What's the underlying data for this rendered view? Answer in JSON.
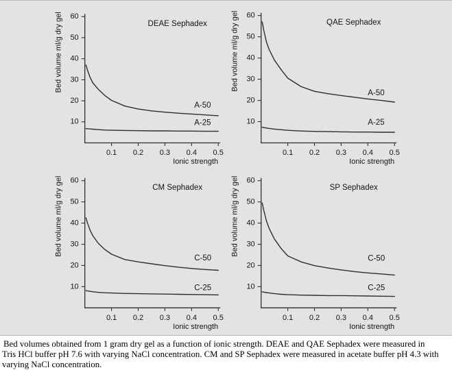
{
  "figure": {
    "background_color": "#e3e3e3",
    "line_color": "#2e2e2e",
    "text_color": "#141414"
  },
  "caption": {
    "lines": [
      "Bed volumes obtained from 1 gram dry gel as a function of ionic strength. DEAE and QAE Sephadex were measured in",
      "Tris HCl buffer pH 7.6 with varying NaCl concentration. CM and SP Sephadex were measured in acetate buffer pH 4.3 with",
      "varying NaCl concentration."
    ]
  },
  "chart_data": [
    {
      "type": "line",
      "title": "DEAE Sephadex",
      "xlabel": "Ionic strength",
      "ylabel": "Bed volume ml/g dry gel",
      "xlim": [
        0,
        0.5
      ],
      "ylim": [
        0,
        60
      ],
      "xticks": [
        0.1,
        0.2,
        0.3,
        0.4,
        0.5
      ],
      "yticks": [
        10,
        20,
        30,
        40,
        50,
        60
      ],
      "grid": false,
      "x": [
        0.004,
        0.01,
        0.02,
        0.03,
        0.05,
        0.075,
        0.1,
        0.15,
        0.2,
        0.25,
        0.3,
        0.35,
        0.4,
        0.45,
        0.5
      ],
      "series": [
        {
          "name": "A-50",
          "label_x": 0.41,
          "label_y": 17.8,
          "y": [
            37,
            34.5,
            31,
            28.5,
            25.5,
            22.5,
            20.2,
            17.5,
            16.1,
            15.2,
            14.6,
            14.1,
            13.7,
            13.3,
            12.9
          ]
        },
        {
          "name": "A-25",
          "label_x": 0.41,
          "label_y": 9.5,
          "y": [
            6.8,
            6.7,
            6.6,
            6.5,
            6.3,
            6.1,
            6.0,
            5.9,
            5.8,
            5.7,
            5.7,
            5.6,
            5.6,
            5.5,
            5.5
          ]
        }
      ]
    },
    {
      "type": "line",
      "title": "QAE Sephadex",
      "xlabel": "Ionic strength",
      "ylabel": "Bed volume ml/g dry gel",
      "xlim": [
        0,
        0.5
      ],
      "ylim": [
        0,
        60
      ],
      "xticks": [
        0.1,
        0.2,
        0.3,
        0.4,
        0.5
      ],
      "yticks": [
        10,
        20,
        30,
        40,
        50,
        60
      ],
      "grid": false,
      "x": [
        0.004,
        0.01,
        0.02,
        0.03,
        0.05,
        0.075,
        0.1,
        0.15,
        0.2,
        0.25,
        0.3,
        0.35,
        0.4,
        0.45,
        0.5
      ],
      "series": [
        {
          "name": "A-50",
          "label_x": 0.4,
          "label_y": 23.5,
          "y": [
            57,
            53,
            47.5,
            44,
            39,
            34.5,
            30.5,
            26.5,
            24.3,
            23.2,
            22.3,
            21.5,
            20.7,
            20.0,
            19.2
          ]
        },
        {
          "name": "A-25",
          "label_x": 0.4,
          "label_y": 9.6,
          "y": [
            7.4,
            7.2,
            7.0,
            6.8,
            6.5,
            6.2,
            5.9,
            5.6,
            5.4,
            5.3,
            5.2,
            5.1,
            5.1,
            5.0,
            5.0
          ]
        }
      ]
    },
    {
      "type": "line",
      "title": "CM Sephadex",
      "xlabel": "Ionic strength",
      "ylabel": "Bed volume ml/g dry gel",
      "xlim": [
        0,
        0.5
      ],
      "ylim": [
        0,
        60
      ],
      "xticks": [
        0.1,
        0.2,
        0.3,
        0.4,
        0.5
      ],
      "yticks": [
        10,
        20,
        30,
        40,
        50,
        60
      ],
      "grid": false,
      "x": [
        0.004,
        0.01,
        0.02,
        0.03,
        0.05,
        0.075,
        0.1,
        0.15,
        0.2,
        0.25,
        0.3,
        0.35,
        0.4,
        0.45,
        0.5
      ],
      "series": [
        {
          "name": "C-50",
          "label_x": 0.41,
          "label_y": 23.4,
          "y": [
            42.5,
            40,
            36.5,
            34,
            30.5,
            27.5,
            25.3,
            22.8,
            21.7,
            20.8,
            19.9,
            19.2,
            18.6,
            18.1,
            17.7
          ]
        },
        {
          "name": "C-25",
          "label_x": 0.41,
          "label_y": 9.3,
          "y": [
            8.1,
            8.0,
            7.8,
            7.6,
            7.3,
            7.1,
            7.0,
            6.8,
            6.7,
            6.6,
            6.5,
            6.4,
            6.3,
            6.2,
            6.1
          ]
        }
      ]
    },
    {
      "type": "line",
      "title": "SP Sephadex",
      "xlabel": "Ionic strength",
      "ylabel": "Bed volume ml/g dry gel",
      "xlim": [
        0,
        0.5
      ],
      "ylim": [
        0,
        60
      ],
      "xticks": [
        0.1,
        0.2,
        0.3,
        0.4,
        0.5
      ],
      "yticks": [
        10,
        20,
        30,
        40,
        50,
        60
      ],
      "grid": false,
      "x": [
        0.004,
        0.01,
        0.02,
        0.03,
        0.05,
        0.075,
        0.1,
        0.15,
        0.2,
        0.25,
        0.3,
        0.35,
        0.4,
        0.45,
        0.5
      ],
      "series": [
        {
          "name": "C-50",
          "label_x": 0.4,
          "label_y": 23.2,
          "y": [
            49.5,
            46,
            41,
            37.5,
            32.5,
            28,
            24.5,
            21.7,
            19.9,
            18.8,
            17.9,
            17.1,
            16.5,
            16.0,
            15.5
          ]
        },
        {
          "name": "C-25",
          "label_x": 0.4,
          "label_y": 9.4,
          "y": [
            7.6,
            7.4,
            7.2,
            7.0,
            6.7,
            6.4,
            6.2,
            6.0,
            5.9,
            5.8,
            5.8,
            5.7,
            5.6,
            5.5,
            5.4
          ]
        }
      ]
    }
  ]
}
